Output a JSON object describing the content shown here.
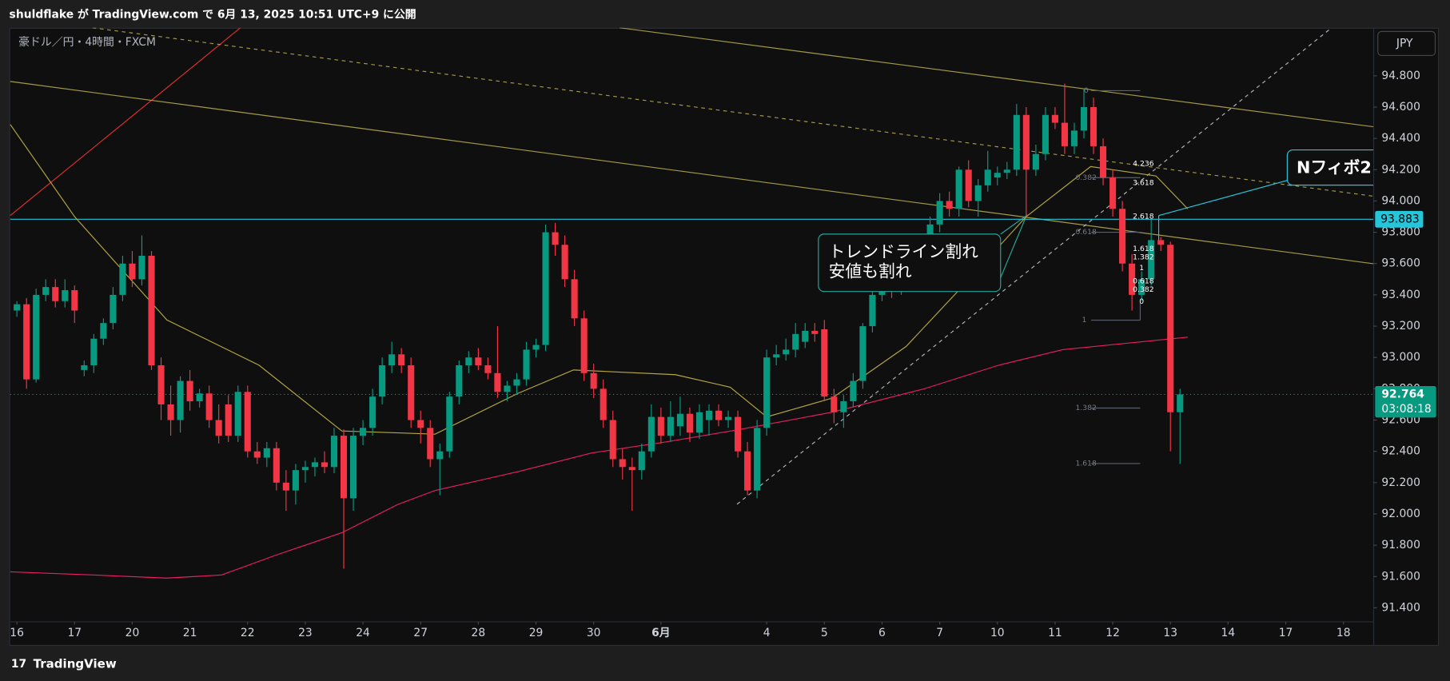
{
  "header": {
    "title": "shuldflake が TradingView.com で 6月 13, 2025 10:51 UTC+9 に公開"
  },
  "footer": {
    "brand": "TradingView"
  },
  "chart_data": {
    "type": "candlestick",
    "symbol": "豪ドル／円・4時間・FXCM",
    "currency": "JPY",
    "up_color": "#089981",
    "down_color": "#f23645",
    "xlim": [
      -0.7,
      141.1
    ],
    "ylim": [
      91.163,
      95.107
    ],
    "xticks": [
      {
        "value": 0,
        "label": "16"
      },
      {
        "value": 6,
        "label": "17"
      },
      {
        "value": 12,
        "label": "20"
      },
      {
        "value": 18,
        "label": "21"
      },
      {
        "value": 24,
        "label": "22"
      },
      {
        "value": 30,
        "label": "23"
      },
      {
        "value": 36,
        "label": "24"
      },
      {
        "value": 42,
        "label": "27"
      },
      {
        "value": 48,
        "label": "28"
      },
      {
        "value": 54,
        "label": "29"
      },
      {
        "value": 60,
        "label": "30"
      },
      {
        "value": 67,
        "label": "6月"
      },
      {
        "value": 78,
        "label": "4"
      },
      {
        "value": 84,
        "label": "5"
      },
      {
        "value": 90,
        "label": "6"
      },
      {
        "value": 96,
        "label": "7"
      },
      {
        "value": 102,
        "label": "10"
      },
      {
        "value": 108,
        "label": "11"
      },
      {
        "value": 114,
        "label": "12"
      },
      {
        "value": 120,
        "label": "13"
      },
      {
        "value": 126,
        "label": "14"
      },
      {
        "value": 132,
        "label": "17"
      },
      {
        "value": 138,
        "label": "18"
      }
    ],
    "yticks": [
      {
        "value": 91.4,
        "label": "91.400"
      },
      {
        "value": 91.6,
        "label": "91.600"
      },
      {
        "value": 91.8,
        "label": "91.800"
      },
      {
        "value": 92.0,
        "label": "92.000"
      },
      {
        "value": 92.2,
        "label": "92.200"
      },
      {
        "value": 92.4,
        "label": "92.400"
      },
      {
        "value": 92.6,
        "label": "92.600"
      },
      {
        "value": 92.8,
        "label": "92.800"
      },
      {
        "value": 93.0,
        "label": "93.000"
      },
      {
        "value": 93.2,
        "label": "93.200"
      },
      {
        "value": 93.4,
        "label": "93.400"
      },
      {
        "value": 93.6,
        "label": "93.600"
      },
      {
        "value": 93.8,
        "label": "93.800"
      },
      {
        "value": 94.0,
        "label": "94.000"
      },
      {
        "value": 94.2,
        "label": "94.200"
      },
      {
        "value": 94.4,
        "label": "94.400"
      },
      {
        "value": 94.6,
        "label": "94.600"
      },
      {
        "value": 94.8,
        "label": "94.800"
      }
    ],
    "ohlc": [
      [
        93.3,
        93.36,
        93.26,
        93.34
      ],
      [
        93.34,
        93.38,
        92.8,
        92.86
      ],
      [
        92.86,
        93.44,
        92.84,
        93.4
      ],
      [
        93.4,
        93.5,
        93.36,
        93.45
      ],
      [
        93.45,
        93.5,
        93.32,
        93.36
      ],
      [
        93.36,
        93.5,
        93.32,
        93.43
      ],
      [
        93.43,
        93.46,
        93.22,
        93.3
      ],
      [
        92.92,
        92.98,
        92.88,
        92.95
      ],
      [
        92.95,
        93.15,
        92.9,
        93.12
      ],
      [
        93.12,
        93.25,
        93.08,
        93.22
      ],
      [
        93.22,
        93.45,
        93.18,
        93.4
      ],
      [
        93.4,
        93.65,
        93.36,
        93.6
      ],
      [
        93.6,
        93.68,
        93.45,
        93.5
      ],
      [
        93.5,
        93.78,
        93.46,
        93.65
      ],
      [
        93.65,
        93.68,
        92.92,
        92.95
      ],
      [
        92.95,
        93.0,
        92.6,
        92.7
      ],
      [
        92.7,
        92.82,
        92.5,
        92.6
      ],
      [
        92.6,
        92.88,
        92.52,
        92.85
      ],
      [
        92.85,
        92.92,
        92.66,
        92.72
      ],
      [
        92.72,
        92.8,
        92.68,
        92.77
      ],
      [
        92.77,
        92.82,
        92.55,
        92.6
      ],
      [
        92.6,
        92.7,
        92.45,
        92.5
      ],
      [
        92.7,
        92.76,
        92.46,
        92.5
      ],
      [
        92.5,
        92.82,
        92.46,
        92.78
      ],
      [
        92.78,
        92.82,
        92.36,
        92.4
      ],
      [
        92.4,
        92.46,
        92.32,
        92.36
      ],
      [
        92.36,
        92.46,
        92.3,
        92.42
      ],
      [
        92.42,
        92.46,
        92.15,
        92.2
      ],
      [
        92.2,
        92.28,
        92.02,
        92.15
      ],
      [
        92.15,
        92.32,
        92.06,
        92.28
      ],
      [
        92.28,
        92.34,
        92.2,
        92.3
      ],
      [
        92.3,
        92.36,
        92.24,
        92.33
      ],
      [
        92.33,
        92.4,
        92.26,
        92.3
      ],
      [
        92.3,
        92.55,
        92.26,
        92.5
      ],
      [
        92.5,
        92.54,
        91.65,
        92.1
      ],
      [
        92.1,
        92.55,
        92.02,
        92.5
      ],
      [
        92.5,
        92.6,
        92.44,
        92.55
      ],
      [
        92.55,
        92.8,
        92.5,
        92.75
      ],
      [
        92.75,
        93.0,
        92.7,
        92.95
      ],
      [
        92.95,
        93.1,
        92.9,
        93.02
      ],
      [
        93.02,
        93.06,
        92.9,
        92.95
      ],
      [
        92.95,
        93.0,
        92.55,
        92.6
      ],
      [
        92.6,
        92.66,
        92.45,
        92.55
      ],
      [
        92.55,
        92.6,
        92.3,
        92.35
      ],
      [
        92.35,
        92.45,
        92.12,
        92.4
      ],
      [
        92.4,
        92.78,
        92.36,
        92.75
      ],
      [
        92.75,
        92.98,
        92.7,
        92.95
      ],
      [
        92.95,
        93.04,
        92.9,
        93.0
      ],
      [
        93.0,
        93.06,
        92.92,
        92.95
      ],
      [
        92.95,
        93.0,
        92.86,
        92.9
      ],
      [
        92.9,
        93.2,
        92.74,
        92.78
      ],
      [
        92.78,
        92.85,
        92.72,
        92.82
      ],
      [
        92.82,
        92.9,
        92.76,
        92.86
      ],
      [
        92.86,
        93.1,
        92.82,
        93.05
      ],
      [
        93.05,
        93.12,
        93.0,
        93.08
      ],
      [
        93.08,
        93.85,
        93.04,
        93.8
      ],
      [
        93.8,
        93.86,
        93.65,
        93.72
      ],
      [
        93.72,
        93.78,
        93.45,
        93.5
      ],
      [
        93.5,
        93.56,
        93.2,
        93.25
      ],
      [
        93.25,
        93.3,
        92.85,
        92.9
      ],
      [
        92.9,
        92.96,
        92.74,
        92.8
      ],
      [
        92.8,
        92.86,
        92.55,
        92.6
      ],
      [
        92.6,
        92.66,
        92.3,
        92.35
      ],
      [
        92.35,
        92.42,
        92.22,
        92.3
      ],
      [
        92.3,
        92.36,
        92.02,
        92.28
      ],
      [
        92.28,
        92.45,
        92.22,
        92.4
      ],
      [
        92.4,
        92.7,
        92.36,
        92.62
      ],
      [
        92.62,
        92.68,
        92.45,
        92.5
      ],
      [
        92.5,
        92.72,
        92.46,
        92.62
      ],
      [
        92.56,
        92.75,
        92.5,
        92.64
      ],
      [
        92.64,
        92.68,
        92.46,
        92.52
      ],
      [
        92.52,
        92.7,
        92.48,
        92.65
      ],
      [
        92.6,
        92.7,
        92.5,
        92.66
      ],
      [
        92.66,
        92.7,
        92.56,
        92.6
      ],
      [
        92.6,
        92.66,
        92.55,
        92.62
      ],
      [
        92.62,
        92.66,
        92.36,
        92.4
      ],
      [
        92.4,
        92.46,
        92.12,
        92.15
      ],
      [
        92.15,
        92.6,
        92.1,
        92.55
      ],
      [
        92.55,
        93.05,
        92.5,
        93.0
      ],
      [
        93.0,
        93.08,
        92.95,
        93.02
      ],
      [
        93.02,
        93.12,
        92.98,
        93.05
      ],
      [
        93.05,
        93.22,
        93.0,
        93.15
      ],
      [
        93.1,
        93.22,
        93.06,
        93.17
      ],
      [
        93.17,
        93.22,
        93.1,
        93.15
      ],
      [
        93.18,
        93.24,
        92.72,
        92.75
      ],
      [
        92.75,
        92.8,
        92.58,
        92.65
      ],
      [
        92.65,
        92.76,
        92.55,
        92.72
      ],
      [
        92.72,
        92.9,
        92.68,
        92.85
      ],
      [
        92.85,
        93.22,
        92.8,
        93.2
      ],
      [
        93.2,
        93.45,
        93.16,
        93.4
      ],
      [
        93.4,
        93.55,
        93.36,
        93.5
      ],
      [
        93.5,
        93.56,
        93.38,
        93.45
      ],
      [
        93.45,
        93.55,
        93.4,
        93.5
      ],
      [
        93.5,
        93.65,
        93.46,
        93.6
      ],
      [
        93.6,
        93.64,
        93.42,
        93.5
      ],
      [
        93.5,
        93.9,
        93.46,
        93.85
      ],
      [
        93.85,
        94.05,
        93.8,
        94.0
      ],
      [
        94.0,
        94.06,
        93.9,
        93.95
      ],
      [
        93.95,
        94.22,
        93.9,
        94.2
      ],
      [
        94.2,
        94.26,
        93.96,
        94.0
      ],
      [
        94.0,
        94.14,
        93.9,
        94.1
      ],
      [
        94.1,
        94.32,
        94.06,
        94.2
      ],
      [
        94.15,
        94.22,
        94.1,
        94.18
      ],
      [
        94.18,
        94.25,
        94.14,
        94.2
      ],
      [
        94.2,
        94.62,
        94.16,
        94.55
      ],
      [
        94.55,
        94.6,
        93.9,
        94.2
      ],
      [
        94.2,
        94.36,
        94.16,
        94.3
      ],
      [
        94.3,
        94.6,
        94.26,
        94.55
      ],
      [
        94.55,
        94.6,
        94.46,
        94.5
      ],
      [
        94.5,
        94.75,
        94.3,
        94.35
      ],
      [
        94.35,
        94.5,
        94.3,
        94.45
      ],
      [
        94.45,
        94.72,
        94.4,
        94.6
      ],
      [
        94.6,
        94.66,
        94.3,
        94.35
      ],
      [
        94.35,
        94.4,
        94.1,
        94.15
      ],
      [
        94.15,
        94.2,
        93.9,
        93.95
      ],
      [
        93.95,
        94.0,
        93.55,
        93.6
      ],
      [
        93.6,
        93.66,
        93.3,
        93.4
      ],
      [
        93.4,
        93.55,
        93.36,
        93.5
      ],
      [
        93.5,
        93.88,
        93.46,
        93.75
      ],
      [
        93.75,
        93.77,
        93.68,
        93.72
      ],
      [
        93.72,
        93.74,
        92.4,
        92.65
      ],
      [
        92.65,
        92.8,
        92.32,
        92.764
      ]
    ],
    "indicators": [
      {
        "color": "#b5a642",
        "x": [
          -0.7,
          6,
          15.6,
          25.2,
          33.8,
          43.5,
          52.1,
          57.9,
          68.5,
          74.2,
          78,
          84.8,
          92.5,
          98.3,
          105,
          111.7,
          118.5,
          121.8
        ],
        "values": [
          94.49,
          93.9,
          93.24,
          92.95,
          92.53,
          92.51,
          92.77,
          92.92,
          92.89,
          92.81,
          92.62,
          92.74,
          93.07,
          93.45,
          93.9,
          94.22,
          94.16,
          93.95
        ]
      },
      {
        "color": "#e91e63",
        "x": [
          -0.7,
          7.9,
          15.6,
          21.3,
          27.1,
          33.8,
          39.6,
          43.5,
          52.1,
          59.8,
          67.5,
          75.2,
          84.8,
          94.4,
          102.1,
          108.8,
          121.8
        ],
        "values": [
          91.63,
          91.61,
          91.59,
          91.61,
          91.74,
          91.88,
          92.06,
          92.15,
          92.27,
          92.39,
          92.46,
          92.54,
          92.65,
          92.8,
          92.95,
          93.05,
          93.13
        ]
      }
    ],
    "level": 93.883,
    "last_price": 92.764,
    "countdown": "03:08:18",
    "annotations": {
      "callout_1": [
        "トレンドライン割れ",
        "安値も割れ"
      ],
      "callout_2": "Nフィボ2",
      "fib_left": [
        "0",
        "0.382",
        "0.618",
        "1",
        "1.382",
        "1.618"
      ],
      "fib_right": [
        "4.236",
        "3.618",
        "2.618",
        "1.618",
        "1.382",
        "1",
        "0.618",
        "0.382",
        "0"
      ]
    }
  }
}
